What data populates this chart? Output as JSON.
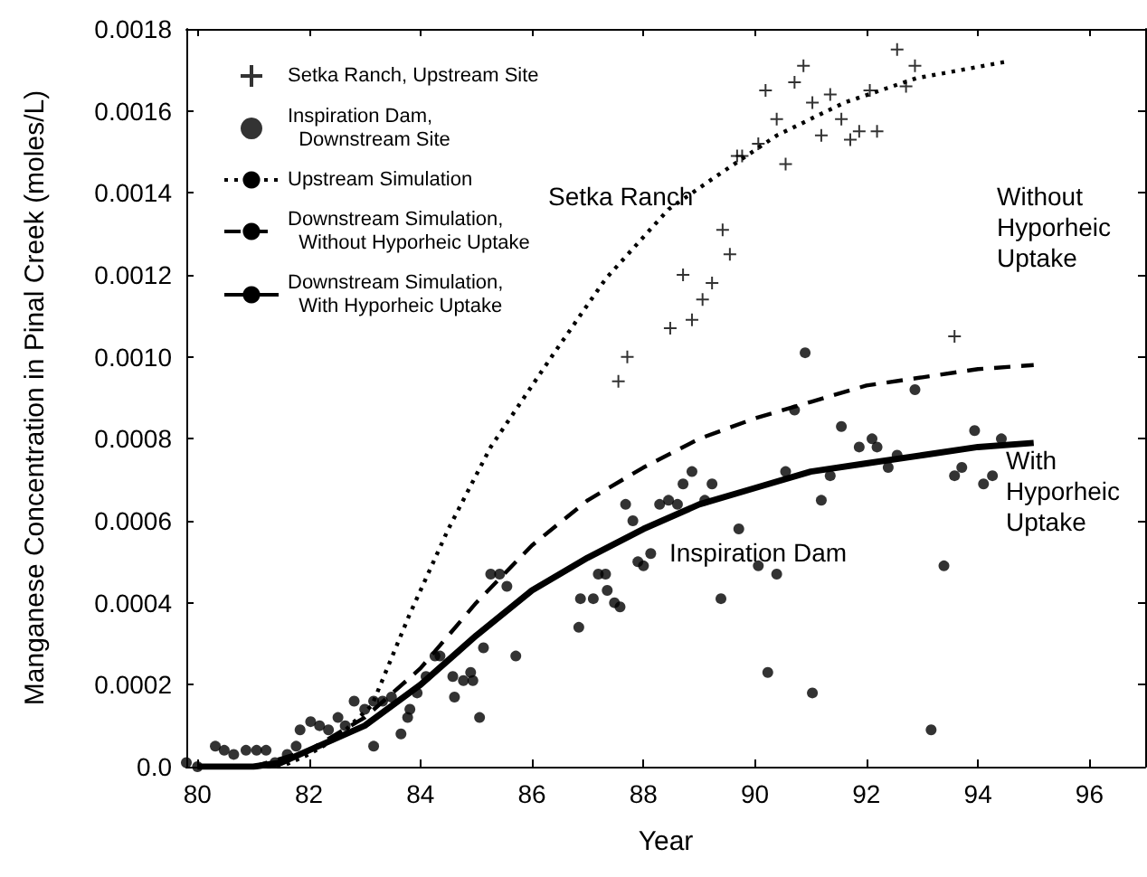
{
  "chart_data": {
    "type": "scatter",
    "xlabel": "Year",
    "ylabel": "Manganese Concentration in Pinal Creek (moles/L)",
    "xlim": [
      79.8,
      97
    ],
    "xticks": [
      80,
      82,
      84,
      86,
      88,
      90,
      92,
      94,
      96
    ],
    "ylim": [
      0,
      0.0018
    ],
    "yticks": [
      {
        "value": 0,
        "label": "0.0"
      },
      {
        "value": 0.0002,
        "label": "0.0002"
      },
      {
        "value": 0.0004,
        "label": "0.0004"
      },
      {
        "value": 0.0006,
        "label": "0.0006"
      },
      {
        "value": 0.0008,
        "label": "0.0008"
      },
      {
        "value": 0.001,
        "label": "0.0010"
      },
      {
        "value": 0.0012,
        "label": "0.0012"
      },
      {
        "value": 0.0014,
        "label": "0.0014"
      },
      {
        "value": 0.0016,
        "label": "0.0016"
      },
      {
        "value": 0.0018,
        "label": "0.0018"
      }
    ],
    "grid": false,
    "legend": "top left",
    "annotations": [
      "Setka Ranch",
      "Inspiration Dam",
      "Without\nHyporheic\nUptake",
      "With\nHyporheic\nUptake"
    ],
    "series": [
      {
        "name": "Setka Ranch, Upstream Site",
        "type": "scatter",
        "marker": "cross",
        "color": "#000000",
        "x": [
          87.55,
          87.71,
          88.48,
          88.71,
          88.87,
          89.06,
          89.23,
          89.42,
          89.55,
          89.68,
          89.77,
          90.06,
          90.19,
          90.39,
          90.55,
          90.71,
          90.87,
          91.03,
          91.19,
          91.35,
          91.55,
          91.71,
          91.87,
          92.06,
          92.19,
          92.55,
          92.71,
          92.87,
          93.58
        ],
        "values": [
          0.00094,
          0.001,
          0.00107,
          0.0012,
          0.00109,
          0.00114,
          0.00118,
          0.00131,
          0.00125,
          0.00149,
          0.00149,
          0.00152,
          0.00165,
          0.00158,
          0.00147,
          0.00167,
          0.00171,
          0.00162,
          0.00154,
          0.00164,
          0.00158,
          0.00153,
          0.00155,
          0.00165,
          0.00155,
          0.00175,
          0.00166,
          0.00171,
          0.00105
        ]
      },
      {
        "name": "Inspiration Dam, Downstream Site",
        "type": "scatter",
        "marker": "circle",
        "color": "#000000",
        "x": [
          79.8,
          80.0,
          80.32,
          80.48,
          80.65,
          80.87,
          81.06,
          81.23,
          81.39,
          81.61,
          81.77,
          81.84,
          82.03,
          82.19,
          82.35,
          82.52,
          82.65,
          82.81,
          83.0,
          83.16,
          83.32,
          83.48,
          83.16,
          83.65,
          83.77,
          83.81,
          83.94,
          84.1,
          84.26,
          84.35,
          84.58,
          84.61,
          84.77,
          84.9,
          84.94,
          85.06,
          85.13,
          85.26,
          85.42,
          85.55,
          85.71,
          86.84,
          86.87,
          87.1,
          87.19,
          87.32,
          87.35,
          87.48,
          87.58,
          87.68,
          87.81,
          87.9,
          88.0,
          88.13,
          88.29,
          88.45,
          88.61,
          88.71,
          88.87,
          89.1,
          89.23,
          89.39,
          89.71,
          90.06,
          90.23,
          90.39,
          90.55,
          90.71,
          90.9,
          91.03,
          91.19,
          91.35,
          91.55,
          91.87,
          92.1,
          92.19,
          92.39,
          92.55,
          92.87,
          93.16,
          93.39,
          93.58,
          93.71,
          93.94,
          94.1,
          94.26,
          94.42
        ],
        "values": [
          1e-05,
          0.0,
          5e-05,
          4e-05,
          3e-05,
          4e-05,
          4e-05,
          4e-05,
          1e-05,
          3e-05,
          5e-05,
          9e-05,
          0.00011,
          0.0001,
          9e-05,
          0.00012,
          0.0001,
          0.00016,
          0.00014,
          0.00016,
          0.00016,
          0.00017,
          5e-05,
          8e-05,
          0.00012,
          0.00014,
          0.00018,
          0.00022,
          0.00027,
          0.00027,
          0.00022,
          0.00017,
          0.00021,
          0.00023,
          0.00021,
          0.00012,
          0.00029,
          0.00047,
          0.00047,
          0.00044,
          0.00027,
          0.00034,
          0.00041,
          0.00041,
          0.00047,
          0.00047,
          0.00043,
          0.0004,
          0.00039,
          0.00064,
          0.0006,
          0.0005,
          0.00049,
          0.00052,
          0.00064,
          0.00065,
          0.00064,
          0.00069,
          0.00072,
          0.00065,
          0.00069,
          0.00041,
          0.00058,
          0.00049,
          0.00023,
          0.00047,
          0.00072,
          0.00087,
          0.00101,
          0.00018,
          0.00065,
          0.00071,
          0.00083,
          0.00078,
          0.0008,
          0.00078,
          0.00073,
          0.00076,
          0.00092,
          9e-05,
          0.00049,
          0.00071,
          0.00073,
          0.00082,
          0.00069,
          0.00071,
          0.0008
        ]
      },
      {
        "name": "Upstream Simulation",
        "type": "line",
        "marker": "none",
        "line_style": "dotted",
        "color": "#000000",
        "x": [
          80,
          81.5,
          82,
          82.5,
          83.13,
          83.8,
          84.5,
          85.26,
          86.35,
          87.32,
          88.45,
          89.3,
          90.39,
          91.6,
          92.9,
          94.5
        ],
        "values": [
          0,
          0,
          3e-05,
          7e-05,
          0.00015,
          0.00037,
          0.00058,
          0.00078,
          0.001,
          0.00119,
          0.00136,
          0.00144,
          0.00154,
          0.00162,
          0.00168,
          0.00172
        ]
      },
      {
        "name": "Downstream Simulation, Without Hyporheic Uptake",
        "type": "line",
        "marker": "none",
        "line_style": "dashed",
        "color": "#000000",
        "x": [
          80,
          81,
          82,
          83,
          84,
          85,
          86,
          87,
          88,
          89,
          90,
          91,
          92,
          93,
          94,
          95
        ],
        "values": [
          0,
          0,
          4e-05,
          0.00012,
          0.00024,
          0.0004,
          0.00054,
          0.00065,
          0.00073,
          0.0008,
          0.00085,
          0.00089,
          0.00093,
          0.00095,
          0.00097,
          0.00098
        ]
      },
      {
        "name": "Downstream Simulation, With Hyporheic Uptake",
        "type": "line",
        "marker": "none",
        "line_style": "solid",
        "color": "#000000",
        "x": [
          80,
          81,
          81.5,
          82,
          83,
          84,
          85,
          86,
          87,
          88,
          89,
          90,
          91,
          92,
          93,
          94,
          95
        ],
        "values": [
          0,
          0,
          1e-05,
          4e-05,
          0.0001,
          0.0002,
          0.00032,
          0.00043,
          0.00051,
          0.00058,
          0.00064,
          0.00068,
          0.00072,
          0.00074,
          0.00076,
          0.00078,
          0.00079
        ]
      }
    ]
  }
}
